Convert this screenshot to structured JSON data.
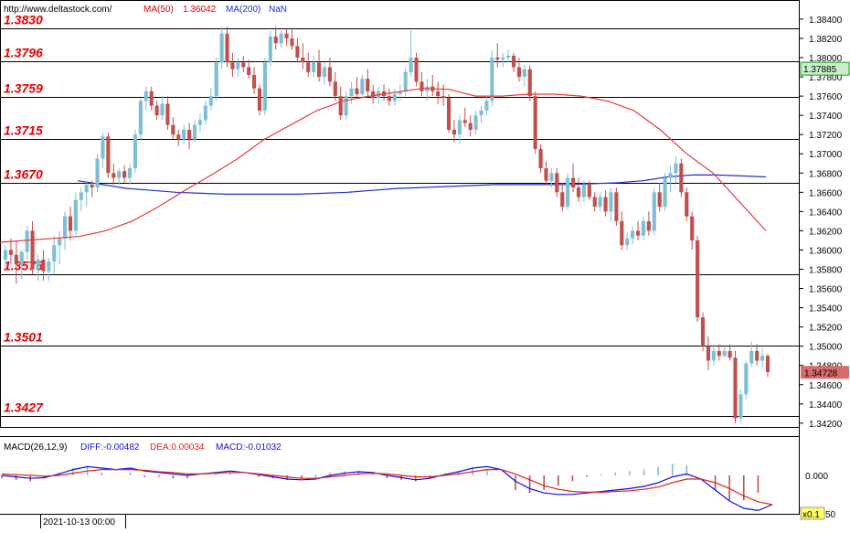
{
  "header": {
    "url": "http://www.deltastock.com/",
    "ma50_label": "MA(50)",
    "ma50_value": "1.36042",
    "ma200_label": "MA(200)",
    "ma200_value": "NaN"
  },
  "price_axis": {
    "ticks": [
      "1.38400",
      "1.38200",
      "1.38000",
      "1.37800",
      "1.37600",
      "1.37400",
      "1.37200",
      "1.37000",
      "1.36800",
      "1.36600",
      "1.36400",
      "1.36200",
      "1.36000",
      "1.35800",
      "1.35600",
      "1.35400",
      "1.35200",
      "1.35000",
      "1.34800",
      "1.34600",
      "1.34400",
      "1.34200"
    ],
    "tick_values": [
      1.384,
      1.382,
      1.38,
      1.378,
      1.376,
      1.374,
      1.372,
      1.37,
      1.368,
      1.366,
      1.364,
      1.362,
      1.36,
      1.358,
      1.356,
      1.354,
      1.352,
      1.35,
      1.348,
      1.346,
      1.344,
      1.342
    ],
    "ylim": [
      1.3417,
      1.3858
    ],
    "last_price_label": "1.34728",
    "last_price": 1.34728,
    "marker_label": "1.37885",
    "marker_value": 1.37885
  },
  "levels": [
    {
      "label": "1.3830",
      "value": 1.383
    },
    {
      "label": "1.3796",
      "value": 1.3796
    },
    {
      "label": "1.3759",
      "value": 1.3759
    },
    {
      "label": "1.3715",
      "value": 1.3715
    },
    {
      "label": "1.3670",
      "value": 1.367
    },
    {
      "label": "1.3575",
      "value": 1.3575
    },
    {
      "label": "1.3501",
      "value": 1.3501
    },
    {
      "label": "1.3427",
      "value": 1.3427
    }
  ],
  "macd": {
    "title": "MACD(26,12,9)",
    "diff_label": "DIFF:-0.00482",
    "dea_label": "DEA:0.00034",
    "macd_label": "MACD:-0.01032",
    "zero_label": "0.000",
    "scale_label": "x0.1",
    "partial_label": "50"
  },
  "date_label": "2021-10-13 00:00",
  "colors": {
    "up": "#7fbfd6",
    "down": "#c0504d",
    "ma50": "#e8383a",
    "ma200": "#1f2fd0",
    "level_text": "#e00000",
    "price_box": "#d96b6b",
    "marker_box": "#c8f0c8",
    "diff": "#1010e0",
    "dea": "#e02020"
  },
  "chart_data": {
    "type": "candlestick",
    "title": "",
    "ylim": [
      1.3417,
      1.3858
    ],
    "candles": [
      [
        1.359,
        1.3605,
        1.358,
        1.36
      ],
      [
        1.36,
        1.3612,
        1.3585,
        1.3595
      ],
      [
        1.3595,
        1.361,
        1.3565,
        1.3585
      ],
      [
        1.3585,
        1.36,
        1.357,
        1.3598
      ],
      [
        1.3598,
        1.3625,
        1.359,
        1.362
      ],
      [
        1.362,
        1.363,
        1.3575,
        1.358
      ],
      [
        1.358,
        1.3595,
        1.3568,
        1.359
      ],
      [
        1.359,
        1.36,
        1.3568,
        1.3578
      ],
      [
        1.3578,
        1.3592,
        1.3568,
        1.3588
      ],
      [
        1.3588,
        1.3615,
        1.3575,
        1.3605
      ],
      [
        1.3605,
        1.362,
        1.3585,
        1.3612
      ],
      [
        1.3612,
        1.364,
        1.36,
        1.3635
      ],
      [
        1.3635,
        1.3645,
        1.361,
        1.362
      ],
      [
        1.362,
        1.366,
        1.3615,
        1.3652
      ],
      [
        1.3652,
        1.3665,
        1.364,
        1.366
      ],
      [
        1.366,
        1.3672,
        1.3645,
        1.3668
      ],
      [
        1.3668,
        1.3672,
        1.3655,
        1.3665
      ],
      [
        1.3665,
        1.37,
        1.366,
        1.3695
      ],
      [
        1.3695,
        1.3722,
        1.3685,
        1.3718
      ],
      [
        1.3718,
        1.3722,
        1.3675,
        1.368
      ],
      [
        1.368,
        1.369,
        1.3668,
        1.3675
      ],
      [
        1.3675,
        1.3685,
        1.3668,
        1.3682
      ],
      [
        1.3682,
        1.3688,
        1.367,
        1.3675
      ],
      [
        1.3675,
        1.369,
        1.3668,
        1.3685
      ],
      [
        1.3685,
        1.3725,
        1.368,
        1.372
      ],
      [
        1.372,
        1.3758,
        1.3715,
        1.3755
      ],
      [
        1.3755,
        1.377,
        1.3745,
        1.3765
      ],
      [
        1.3765,
        1.377,
        1.3745,
        1.375
      ],
      [
        1.375,
        1.3755,
        1.3735,
        1.374
      ],
      [
        1.374,
        1.376,
        1.3735,
        1.3752
      ],
      [
        1.3752,
        1.376,
        1.3725,
        1.373
      ],
      [
        1.373,
        1.3738,
        1.3715,
        1.372
      ],
      [
        1.372,
        1.3725,
        1.3708,
        1.3715
      ],
      [
        1.3715,
        1.373,
        1.371,
        1.3725
      ],
      [
        1.3725,
        1.3732,
        1.3705,
        1.3715
      ],
      [
        1.3715,
        1.3735,
        1.3712,
        1.373
      ],
      [
        1.373,
        1.3742,
        1.3722,
        1.3735
      ],
      [
        1.3735,
        1.3755,
        1.373,
        1.375
      ],
      [
        1.375,
        1.3768,
        1.3745,
        1.376
      ],
      [
        1.376,
        1.38,
        1.3755,
        1.3795
      ],
      [
        1.3795,
        1.3832,
        1.3788,
        1.3825
      ],
      [
        1.3825,
        1.3832,
        1.379,
        1.3795
      ],
      [
        1.3795,
        1.3805,
        1.378,
        1.3788
      ],
      [
        1.3788,
        1.38,
        1.378,
        1.3795
      ],
      [
        1.3795,
        1.3802,
        1.3785,
        1.379
      ],
      [
        1.379,
        1.3798,
        1.3778,
        1.3782
      ],
      [
        1.3782,
        1.379,
        1.3762,
        1.3768
      ],
      [
        1.3768,
        1.3772,
        1.374,
        1.3745
      ],
      [
        1.3745,
        1.38,
        1.374,
        1.3795
      ],
      [
        1.3795,
        1.3828,
        1.379,
        1.3822
      ],
      [
        1.3822,
        1.3832,
        1.3808,
        1.3815
      ],
      [
        1.3815,
        1.3828,
        1.381,
        1.3825
      ],
      [
        1.3825,
        1.383,
        1.3812,
        1.382
      ],
      [
        1.382,
        1.383,
        1.3808,
        1.3812
      ],
      [
        1.3812,
        1.382,
        1.3795,
        1.38
      ],
      [
        1.38,
        1.3815,
        1.3788,
        1.3795
      ],
      [
        1.3795,
        1.3805,
        1.378,
        1.3785
      ],
      [
        1.3785,
        1.3802,
        1.378,
        1.3795
      ],
      [
        1.3795,
        1.3808,
        1.3775,
        1.378
      ],
      [
        1.378,
        1.3795,
        1.3772,
        1.379
      ],
      [
        1.379,
        1.38,
        1.377,
        1.3775
      ],
      [
        1.3775,
        1.3785,
        1.3755,
        1.376
      ],
      [
        1.376,
        1.377,
        1.3735,
        1.374
      ],
      [
        1.374,
        1.3765,
        1.3735,
        1.376
      ],
      [
        1.376,
        1.3775,
        1.3752,
        1.3768
      ],
      [
        1.3768,
        1.378,
        1.3758,
        1.3762
      ],
      [
        1.3762,
        1.3782,
        1.3758,
        1.3778
      ],
      [
        1.3778,
        1.3788,
        1.376,
        1.3765
      ],
      [
        1.3765,
        1.3772,
        1.3752,
        1.3758
      ],
      [
        1.3758,
        1.377,
        1.3752,
        1.3765
      ],
      [
        1.3765,
        1.3772,
        1.3755,
        1.376
      ],
      [
        1.376,
        1.3768,
        1.375,
        1.3755
      ],
      [
        1.3755,
        1.3768,
        1.375,
        1.3762
      ],
      [
        1.3762,
        1.3772,
        1.3755,
        1.3765
      ],
      [
        1.3765,
        1.379,
        1.376,
        1.3785
      ],
      [
        1.3785,
        1.3828,
        1.378,
        1.38
      ],
      [
        1.38,
        1.3805,
        1.377,
        1.3775
      ],
      [
        1.3775,
        1.3785,
        1.376,
        1.3765
      ],
      [
        1.3765,
        1.3778,
        1.3755,
        1.377
      ],
      [
        1.377,
        1.3782,
        1.376,
        1.3765
      ],
      [
        1.3765,
        1.3775,
        1.3752,
        1.376
      ],
      [
        1.376,
        1.3772,
        1.375,
        1.3758
      ],
      [
        1.3758,
        1.3762,
        1.3722,
        1.3725
      ],
      [
        1.3725,
        1.3735,
        1.3712,
        1.372
      ],
      [
        1.372,
        1.374,
        1.371,
        1.3735
      ],
      [
        1.3735,
        1.3748,
        1.3728,
        1.3732
      ],
      [
        1.3732,
        1.374,
        1.3718,
        1.3725
      ],
      [
        1.3725,
        1.3745,
        1.372,
        1.374
      ],
      [
        1.374,
        1.375,
        1.3732,
        1.3745
      ],
      [
        1.3745,
        1.376,
        1.374,
        1.3755
      ],
      [
        1.3755,
        1.3808,
        1.375,
        1.38
      ],
      [
        1.38,
        1.3815,
        1.379,
        1.3798
      ],
      [
        1.3798,
        1.3805,
        1.379,
        1.38
      ],
      [
        1.38,
        1.3808,
        1.3795,
        1.3802
      ],
      [
        1.3802,
        1.3805,
        1.3785,
        1.379
      ],
      [
        1.379,
        1.38,
        1.3775,
        1.378
      ],
      [
        1.378,
        1.3792,
        1.377,
        1.3788
      ],
      [
        1.3788,
        1.3792,
        1.3755,
        1.376
      ],
      [
        1.376,
        1.3765,
        1.37,
        1.3705
      ],
      [
        1.3705,
        1.371,
        1.368,
        1.3685
      ],
      [
        1.3685,
        1.3692,
        1.3668,
        1.3672
      ],
      [
        1.3672,
        1.3685,
        1.3665,
        1.368
      ],
      [
        1.368,
        1.3685,
        1.3655,
        1.366
      ],
      [
        1.366,
        1.367,
        1.364,
        1.3645
      ],
      [
        1.3645,
        1.368,
        1.3642,
        1.3675
      ],
      [
        1.3675,
        1.369,
        1.366,
        1.3665
      ],
      [
        1.3665,
        1.3675,
        1.365,
        1.3655
      ],
      [
        1.3655,
        1.3672,
        1.365,
        1.3668
      ],
      [
        1.3668,
        1.3672,
        1.3652,
        1.3655
      ],
      [
        1.3655,
        1.366,
        1.364,
        1.3645
      ],
      [
        1.3645,
        1.366,
        1.364,
        1.3655
      ],
      [
        1.3655,
        1.3662,
        1.3635,
        1.364
      ],
      [
        1.364,
        1.3665,
        1.363,
        1.366
      ],
      [
        1.366,
        1.3665,
        1.3625,
        1.363
      ],
      [
        1.363,
        1.364,
        1.36,
        1.3605
      ],
      [
        1.3605,
        1.3618,
        1.36,
        1.3612
      ],
      [
        1.3612,
        1.3625,
        1.3606,
        1.362
      ],
      [
        1.362,
        1.363,
        1.361,
        1.3615
      ],
      [
        1.3615,
        1.3635,
        1.361,
        1.363
      ],
      [
        1.363,
        1.364,
        1.3615,
        1.362
      ],
      [
        1.362,
        1.3665,
        1.3615,
        1.366
      ],
      [
        1.366,
        1.367,
        1.364,
        1.3645
      ],
      [
        1.3645,
        1.368,
        1.364,
        1.3675
      ],
      [
        1.3675,
        1.3688,
        1.366,
        1.368
      ],
      [
        1.368,
        1.3698,
        1.367,
        1.369
      ],
      [
        1.369,
        1.3695,
        1.3655,
        1.366
      ],
      [
        1.366,
        1.3665,
        1.363,
        1.3635
      ],
      [
        1.3635,
        1.364,
        1.36,
        1.361
      ],
      [
        1.361,
        1.3615,
        1.3525,
        1.353
      ],
      [
        1.353,
        1.3535,
        1.3495,
        1.35
      ],
      [
        1.35,
        1.351,
        1.3475,
        1.3485
      ],
      [
        1.3485,
        1.3502,
        1.348,
        1.3495
      ],
      [
        1.3495,
        1.3502,
        1.3485,
        1.349
      ],
      [
        1.349,
        1.35,
        1.3488,
        1.3495
      ],
      [
        1.3495,
        1.3502,
        1.3485,
        1.3488
      ],
      [
        1.3488,
        1.3495,
        1.342,
        1.3425
      ],
      [
        1.3425,
        1.3455,
        1.342,
        1.345
      ],
      [
        1.345,
        1.3485,
        1.3445,
        1.3482
      ],
      [
        1.3482,
        1.3505,
        1.3478,
        1.3495
      ],
      [
        1.3495,
        1.3502,
        1.348,
        1.3485
      ],
      [
        1.3485,
        1.3498,
        1.3478,
        1.349
      ],
      [
        1.349,
        1.3492,
        1.3468,
        1.3473
      ]
    ],
    "ma50": [
      1.3608,
      1.361,
      1.3612,
      1.3614,
      1.362,
      1.363,
      1.3645,
      1.3662,
      1.3678,
      1.3695,
      1.3715,
      1.373,
      1.3745,
      1.3755,
      1.376,
      1.3764,
      1.3768,
      1.3767,
      1.376,
      1.376,
      1.3762,
      1.3762,
      1.376,
      1.3755,
      1.3745,
      1.3725,
      1.37,
      1.368,
      1.365,
      1.362
    ],
    "ma200": [
      1.3672,
      1.3668,
      1.3664,
      1.3662,
      1.366,
      1.3659,
      1.3658,
      1.3658,
      1.3658,
      1.3658,
      1.3659,
      1.366,
      1.3662,
      1.3664,
      1.3665,
      1.3666,
      1.3667,
      1.3668,
      1.3668,
      1.3668,
      1.3668,
      1.3669,
      1.367,
      1.3672,
      1.3676,
      1.3678,
      1.3678,
      1.3677,
      1.3676
    ],
    "macd_diff": [
      0.0,
      -0.2,
      -0.4,
      -0.3,
      0.2,
      0.8,
      1.2,
      1.0,
      0.8,
      1.0,
      0.6,
      0.4,
      0.2,
      0.0,
      0.2,
      0.4,
      0.6,
      0.4,
      0.1,
      -0.2,
      -0.5,
      -0.6,
      -0.5,
      0.0,
      0.3,
      0.5,
      0.4,
      0.0,
      -0.3,
      -0.6,
      -0.4,
      0.1,
      0.5,
      1.0,
      1.2,
      0.8,
      -0.8,
      -1.8,
      -2.4,
      -2.6,
      -2.6,
      -2.4,
      -2.2,
      -2.0,
      -1.8,
      -1.5,
      -1.0,
      -0.2,
      0.2,
      -0.5,
      -2.0,
      -3.5,
      -4.5,
      -4.8,
      -4.0
    ],
    "macd_dea": [
      0.2,
      0.1,
      0.0,
      -0.1,
      0.0,
      0.3,
      0.6,
      0.8,
      0.8,
      0.8,
      0.7,
      0.5,
      0.4,
      0.2,
      0.2,
      0.3,
      0.4,
      0.4,
      0.2,
      0.0,
      -0.2,
      -0.4,
      -0.4,
      -0.2,
      0.0,
      0.2,
      0.3,
      0.2,
      0.0,
      -0.2,
      -0.2,
      0.0,
      0.2,
      0.5,
      0.8,
      0.8,
      0.2,
      -0.6,
      -1.4,
      -1.9,
      -2.2,
      -2.3,
      -2.3,
      -2.2,
      -2.1,
      -1.9,
      -1.6,
      -1.0,
      -0.5,
      -0.5,
      -1.0,
      -1.8,
      -2.8,
      -3.6,
      -4.0
    ]
  }
}
